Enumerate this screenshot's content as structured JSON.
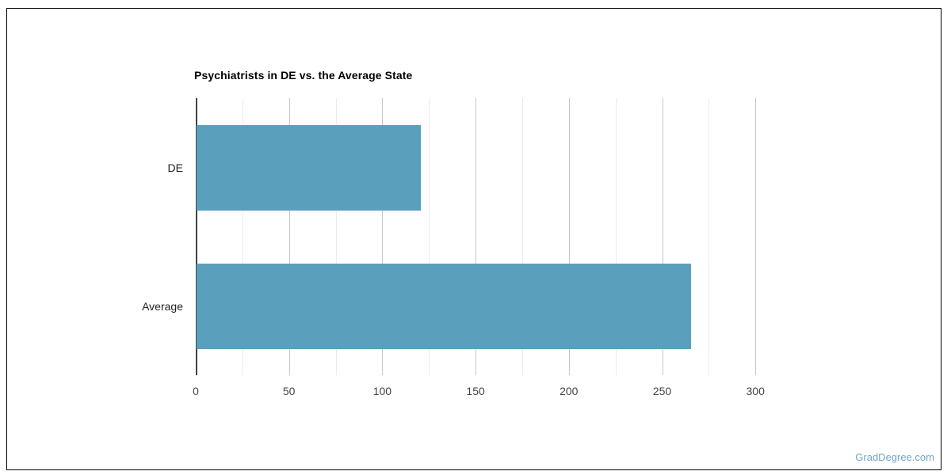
{
  "page": {
    "watermark": "GradDegree.com"
  },
  "chart_data": {
    "type": "bar",
    "orientation": "horizontal",
    "title": "Psychiatrists in DE vs. the Average State",
    "categories": [
      "DE",
      "Average"
    ],
    "values": [
      120,
      265
    ],
    "xlabel": "",
    "ylabel": "",
    "xlim": [
      0,
      325
    ],
    "x_major_ticks": [
      0,
      50,
      100,
      150,
      200,
      250,
      300
    ],
    "x_minor_step": 25,
    "grid": true,
    "legend_position": "none",
    "bar_color": "#5AA0BD",
    "colors": {
      "axis_line": "#424242",
      "major_grid": "#c7c7c7",
      "minor_grid": "#ebebeb",
      "tick_label": "#444444",
      "category_label": "#222222",
      "title": "#000000",
      "watermark": "#6FA7C7",
      "frame_border": "#000000",
      "background": "#ffffff"
    }
  }
}
